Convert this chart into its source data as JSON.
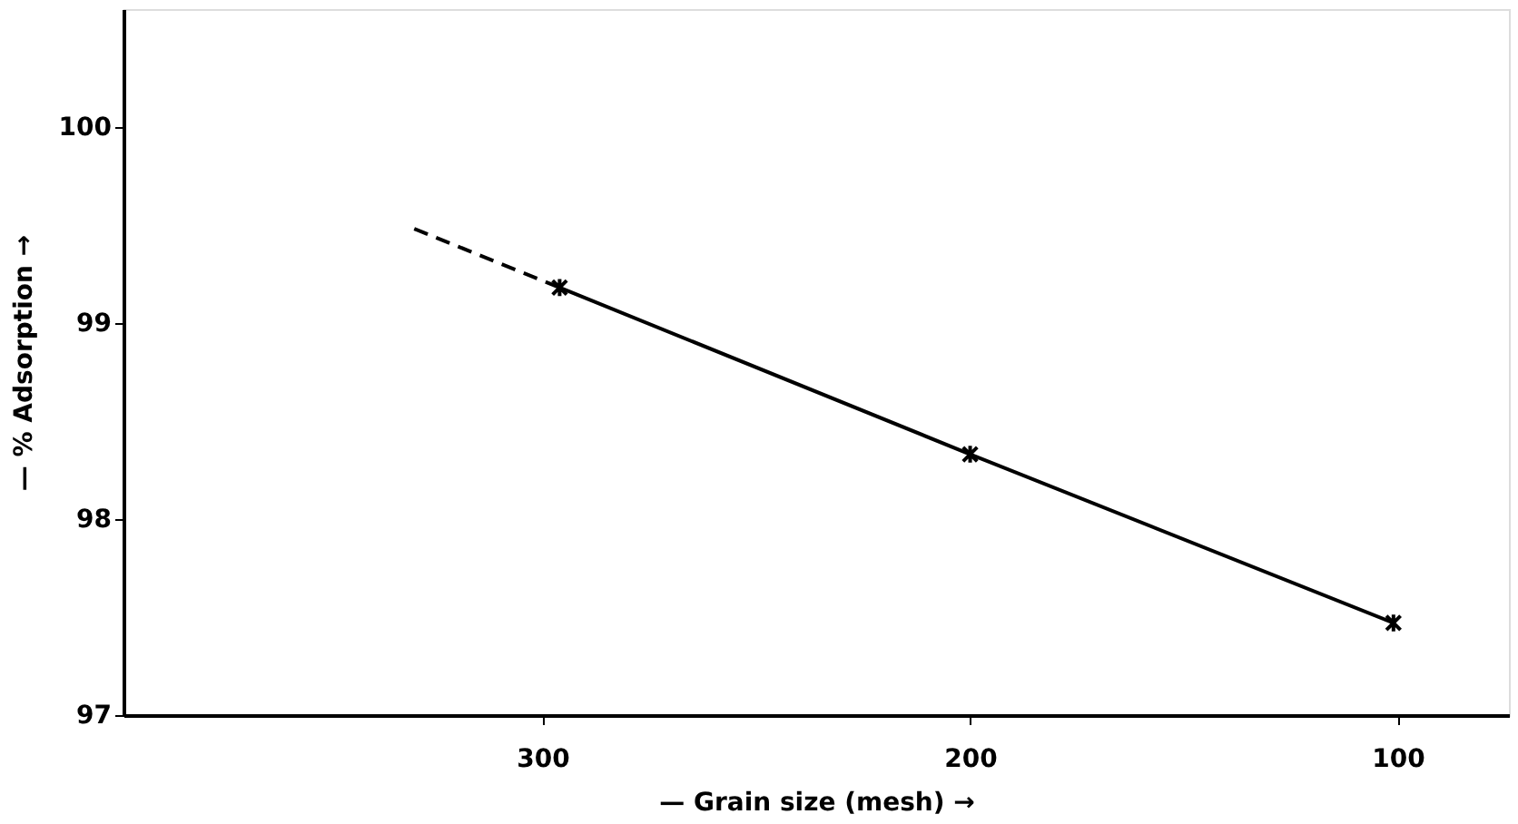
{
  "chart_data": {
    "type": "line",
    "xlabel": "— Grain size (mesh) →",
    "ylabel": "— % Adsorption →",
    "xlim": [
      398,
      74
    ],
    "xticks": [
      300,
      200,
      100
    ],
    "ylim": [
      97,
      100.6
    ],
    "yticks": [
      97,
      98,
      99,
      100
    ],
    "grid": false,
    "series": [
      {
        "color": "#000000",
        "x": [
          296,
          200,
          101
        ],
        "values": [
          99.18,
          98.33,
          97.47
        ],
        "marker": "cross",
        "line_style": "solid"
      },
      {
        "color": "#000000",
        "x": [
          330,
          296
        ],
        "values": [
          99.48,
          99.18
        ],
        "marker": "none",
        "line_style": "dashed"
      }
    ]
  }
}
